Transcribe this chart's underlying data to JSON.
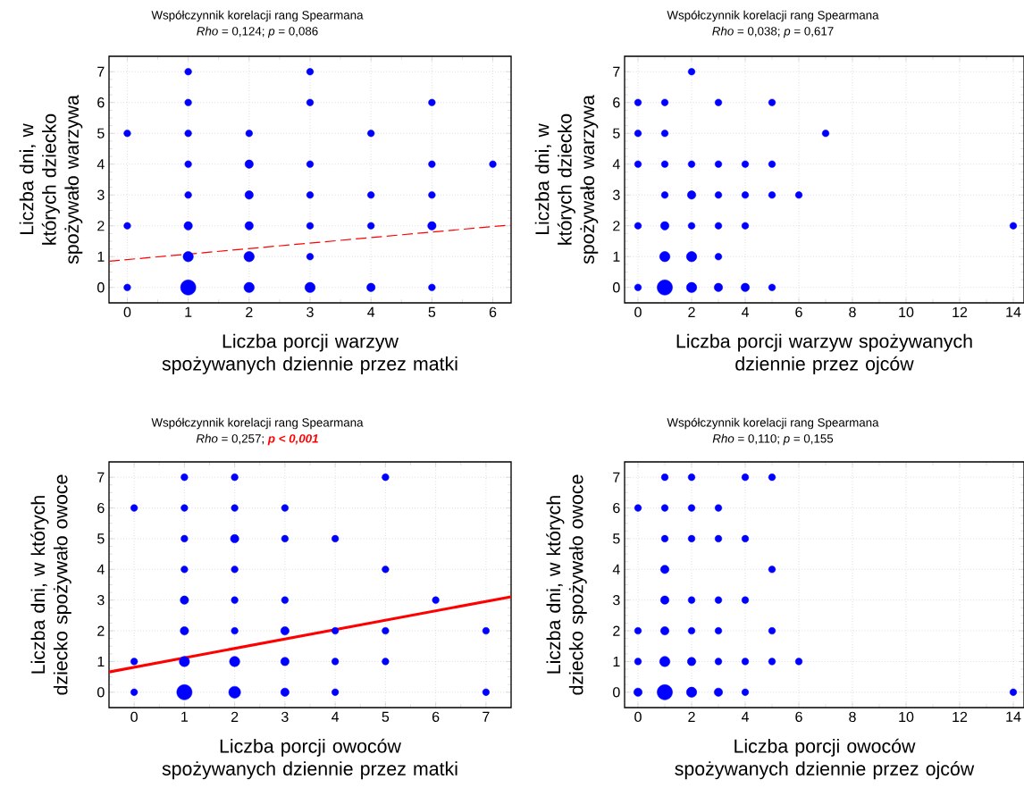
{
  "chart_data": [
    {
      "type": "bubble",
      "title": "Współczynnik korelacji rang Spearmana",
      "subtitle": "*Rho* = 0,124; *p* = 0,086",
      "xlabel": "Liczba porcji warzyw spożywanych dziennie przez matki",
      "ylabel": "Liczba dni, w których dziecko spożywało warzywa",
      "xlim": [
        -0.3,
        6.3
      ],
      "ylim": [
        -0.5,
        7.5
      ],
      "xticks": [
        0,
        1,
        2,
        3,
        4,
        5,
        6
      ],
      "yticks": [
        0,
        1,
        2,
        3,
        4,
        5,
        6,
        7
      ],
      "grid": true,
      "series": [
        {
          "marker": "circle",
          "color": "#0000ff",
          "x": [
            0,
            0,
            0,
            1,
            1,
            1,
            1,
            1,
            1,
            1,
            1,
            2,
            2,
            2,
            2,
            2,
            2,
            3,
            3,
            3,
            3,
            3,
            3,
            3,
            4,
            4,
            4,
            4,
            5,
            5,
            5,
            5,
            5,
            6
          ],
          "values": [
            5,
            2,
            0,
            7,
            6,
            5,
            4,
            3,
            2,
            1,
            0,
            5,
            4,
            3,
            2,
            1,
            0,
            7,
            6,
            4,
            3,
            2,
            1,
            0,
            5,
            3,
            2,
            0,
            6,
            4,
            3,
            2,
            0,
            4
          ],
          "sizes": [
            0.2,
            0.2,
            0.2,
            0.2,
            0.2,
            0.2,
            0.2,
            0.2,
            0.3,
            0.45,
            1,
            0.2,
            0.3,
            0.3,
            0.3,
            0.45,
            0.45,
            0.2,
            0.2,
            0.2,
            0.2,
            0.2,
            0.2,
            0.45,
            0.2,
            0.2,
            0.2,
            0.3,
            0.2,
            0.2,
            0.2,
            0.3,
            0.2,
            0.2
          ]
        },
        {
          "type": "line",
          "marker": "none",
          "color": "#ff0000",
          "line_style": "dashed",
          "x": [
            -0.3,
            6.3
          ],
          "values": [
            0.85,
            2.03
          ]
        }
      ]
    },
    {
      "type": "bubble",
      "title": "Współczynnik korelacji rang Spearmana",
      "subtitle": "*Rho* = 0,038; *p* = 0,617",
      "xlabel": "Liczba porcji warzyw spożywanych dziennie przez ojców",
      "ylabel": "Liczba dni, w których dziecko spożywało warzywa",
      "xlim": [
        -0.5,
        14.4
      ],
      "ylim": [
        -0.5,
        7.5
      ],
      "xticks": [
        0,
        2,
        4,
        6,
        8,
        10,
        12,
        14
      ],
      "yticks": [
        0,
        1,
        2,
        3,
        4,
        5,
        6,
        7
      ],
      "grid": true,
      "series": [
        {
          "marker": "circle",
          "color": "#0000ff",
          "x": [
            0,
            0,
            0,
            0,
            0,
            1,
            1,
            1,
            1,
            1,
            1,
            1,
            2,
            2,
            2,
            2,
            2,
            2,
            3,
            3,
            3,
            3,
            3,
            3,
            4,
            4,
            4,
            4,
            5,
            5,
            5,
            5,
            6,
            7,
            14
          ],
          "values": [
            6,
            5,
            4,
            2,
            0,
            6,
            5,
            4,
            3,
            2,
            1,
            0,
            7,
            4,
            3,
            2,
            1,
            0,
            6,
            4,
            3,
            2,
            1,
            0,
            4,
            3,
            2,
            0,
            6,
            4,
            3,
            0,
            3,
            5,
            2
          ],
          "sizes": [
            0.2,
            0.2,
            0.2,
            0.2,
            0.2,
            0.2,
            0.2,
            0.2,
            0.2,
            0.3,
            0.45,
            1,
            0.2,
            0.2,
            0.3,
            0.2,
            0.45,
            0.45,
            0.2,
            0.2,
            0.2,
            0.2,
            0.2,
            0.3,
            0.2,
            0.2,
            0.2,
            0.3,
            0.2,
            0.2,
            0.2,
            0.2,
            0.2,
            0.2,
            0.2
          ]
        }
      ]
    },
    {
      "type": "bubble",
      "title": "Współczynnik korelacji rang Spearmana",
      "subtitle": "*Rho* = 0,257;",
      "annotations": [
        "p < 0,001"
      ],
      "xlabel": "Liczba porcji owoców spożywanych dziennie przez matki",
      "ylabel": "Liczba dni, w których dziecko spożywało owoce",
      "xlim": [
        -0.5,
        7.5
      ],
      "ylim": [
        -0.5,
        7.5
      ],
      "xticks": [
        0,
        1,
        2,
        3,
        4,
        5,
        6,
        7
      ],
      "yticks": [
        0,
        1,
        2,
        3,
        4,
        5,
        6,
        7
      ],
      "grid": true,
      "series": [
        {
          "marker": "circle",
          "color": "#0000ff",
          "x": [
            0,
            0,
            0,
            1,
            1,
            1,
            1,
            1,
            1,
            1,
            1,
            2,
            2,
            2,
            2,
            2,
            2,
            2,
            2,
            3,
            3,
            3,
            3,
            3,
            3,
            4,
            4,
            4,
            4,
            5,
            5,
            5,
            5,
            6,
            7,
            7
          ],
          "values": [
            6,
            1,
            0,
            7,
            6,
            5,
            4,
            3,
            2,
            1,
            0,
            7,
            6,
            5,
            4,
            3,
            2,
            1,
            0,
            6,
            5,
            3,
            2,
            1,
            0,
            5,
            2,
            1,
            0,
            7,
            4,
            2,
            1,
            3,
            2,
            0
          ],
          "sizes": [
            0.2,
            0.2,
            0.2,
            0.2,
            0.2,
            0.2,
            0.2,
            0.3,
            0.3,
            0.45,
            1,
            0.2,
            0.2,
            0.3,
            0.2,
            0.2,
            0.2,
            0.45,
            0.6,
            0.2,
            0.2,
            0.2,
            0.3,
            0.3,
            0.3,
            0.2,
            0.2,
            0.2,
            0.2,
            0.2,
            0.2,
            0.2,
            0.2,
            0.2,
            0.2,
            0.2
          ]
        },
        {
          "type": "line",
          "marker": "none",
          "color": "#ff0000",
          "line_style": "solid",
          "x": [
            -0.5,
            7.5
          ],
          "values": [
            0.66,
            3.11
          ]
        }
      ]
    },
    {
      "type": "bubble",
      "title": "Współczynnik korelacji rang Spearmana",
      "subtitle": "*Rho* = 0,110; *p* = 0,155",
      "xlabel": "Liczba porcji owoców spożywanych dziennie przez ojców",
      "ylabel": "Liczba dni, w których dziecko spożywało owoce",
      "xlim": [
        -0.5,
        14.4
      ],
      "ylim": [
        -0.5,
        7.5
      ],
      "xticks": [
        0,
        2,
        4,
        6,
        8,
        10,
        12,
        14
      ],
      "yticks": [
        0,
        1,
        2,
        3,
        4,
        5,
        6,
        7
      ],
      "grid": true,
      "series": [
        {
          "marker": "circle",
          "color": "#0000ff",
          "x": [
            0,
            0,
            0,
            0,
            1,
            1,
            1,
            1,
            1,
            1,
            1,
            1,
            2,
            2,
            2,
            2,
            2,
            2,
            2,
            3,
            3,
            3,
            3,
            3,
            3,
            4,
            4,
            4,
            4,
            4,
            5,
            5,
            5,
            5,
            6,
            14
          ],
          "values": [
            6,
            2,
            1,
            0,
            7,
            6,
            5,
            4,
            3,
            2,
            1,
            0,
            7,
            6,
            5,
            3,
            2,
            1,
            0,
            6,
            5,
            3,
            2,
            1,
            0,
            7,
            5,
            3,
            1,
            0,
            7,
            4,
            2,
            1,
            1,
            0
          ],
          "sizes": [
            0.2,
            0.2,
            0.2,
            0.3,
            0.2,
            0.2,
            0.2,
            0.3,
            0.3,
            0.3,
            0.45,
            1,
            0.2,
            0.2,
            0.2,
            0.2,
            0.2,
            0.3,
            0.45,
            0.2,
            0.2,
            0.2,
            0.2,
            0.2,
            0.3,
            0.2,
            0.2,
            0.2,
            0.2,
            0.2,
            0.2,
            0.2,
            0.2,
            0.2,
            0.2,
            0.2
          ]
        }
      ]
    }
  ]
}
